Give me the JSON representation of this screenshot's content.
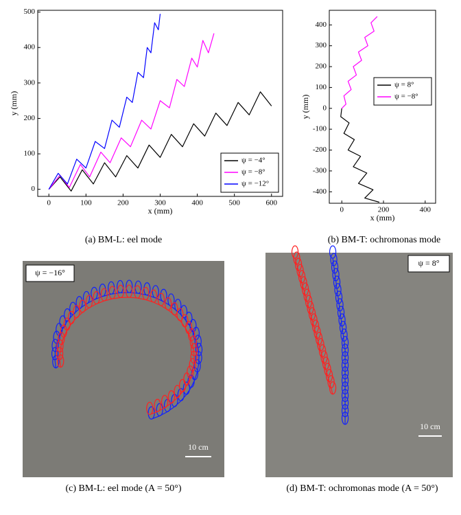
{
  "chart_data": [
    {
      "type": "line",
      "caption": "(a) BM-L: eel mode",
      "xlabel": "x (mm)",
      "ylabel": "y (mm)",
      "xlim": [
        -30,
        630
      ],
      "ylim": [
        -20,
        505
      ],
      "xticks": [
        0,
        100,
        200,
        300,
        400,
        500,
        600
      ],
      "yticks": [
        0,
        100,
        200,
        300,
        400,
        500
      ],
      "grid": false,
      "legend": "lower right",
      "series": [
        {
          "name": "ψ = −4°",
          "color": "#000000",
          "x": [
            0,
            30,
            60,
            90,
            120,
            150,
            180,
            210,
            240,
            270,
            300,
            330,
            360,
            390,
            420,
            450,
            480,
            510,
            540,
            570,
            600
          ],
          "values": [
            0,
            35,
            -5,
            55,
            15,
            75,
            35,
            95,
            60,
            125,
            90,
            155,
            120,
            185,
            150,
            215,
            180,
            245,
            210,
            275,
            235
          ]
        },
        {
          "name": "ψ = −8°",
          "color": "#ff00ff",
          "x": [
            0,
            30,
            55,
            85,
            110,
            140,
            165,
            195,
            220,
            250,
            275,
            300,
            325,
            345,
            365,
            385,
            400,
            415,
            430,
            445
          ],
          "values": [
            0,
            40,
            5,
            70,
            35,
            105,
            75,
            145,
            120,
            195,
            170,
            250,
            230,
            310,
            290,
            370,
            345,
            420,
            385,
            440
          ]
        },
        {
          "name": "ψ = −12°",
          "color": "#0000ff",
          "x": [
            0,
            25,
            50,
            75,
            100,
            125,
            150,
            170,
            190,
            210,
            225,
            240,
            255,
            265,
            275,
            285,
            295,
            300
          ],
          "values": [
            0,
            45,
            15,
            85,
            60,
            135,
            115,
            195,
            175,
            260,
            245,
            330,
            315,
            400,
            385,
            470,
            450,
            495
          ]
        }
      ]
    },
    {
      "type": "line",
      "caption": "(b) BM-T: ochromonas mode",
      "xlabel": "x (mm)",
      "ylabel": "y (mm)",
      "xlim": [
        -60,
        450
      ],
      "ylim": [
        -455,
        470
      ],
      "xticks": [
        0,
        200,
        400
      ],
      "yticks": [
        -400,
        -300,
        -200,
        -100,
        0,
        100,
        200,
        300,
        400
      ],
      "grid": false,
      "legend": "right",
      "series": [
        {
          "name": "ψ = 8°",
          "color": "#000000",
          "x": [
            0,
            -5,
            35,
            10,
            60,
            30,
            90,
            55,
            120,
            80,
            150,
            110,
            180
          ],
          "values": [
            0,
            -40,
            -70,
            -120,
            -150,
            -200,
            -230,
            -280,
            -310,
            -360,
            -390,
            -430,
            -450
          ]
        },
        {
          "name": "ψ = −8°",
          "color": "#ff00ff",
          "x": [
            0,
            20,
            10,
            45,
            30,
            70,
            55,
            95,
            80,
            125,
            110,
            155,
            140,
            170
          ],
          "values": [
            0,
            20,
            60,
            90,
            130,
            160,
            200,
            230,
            270,
            300,
            340,
            370,
            410,
            440
          ]
        }
      ]
    }
  ],
  "photos": [
    {
      "caption": "(c) BM-L: eel mode (A = 50°)",
      "annotation": "ψ = −16°",
      "scale_label": "10 cm"
    },
    {
      "caption": "(d) BM-T: ochromonas mode (A = 50°)",
      "annotation": "ψ = 8°",
      "scale_label": "10 cm"
    }
  ]
}
